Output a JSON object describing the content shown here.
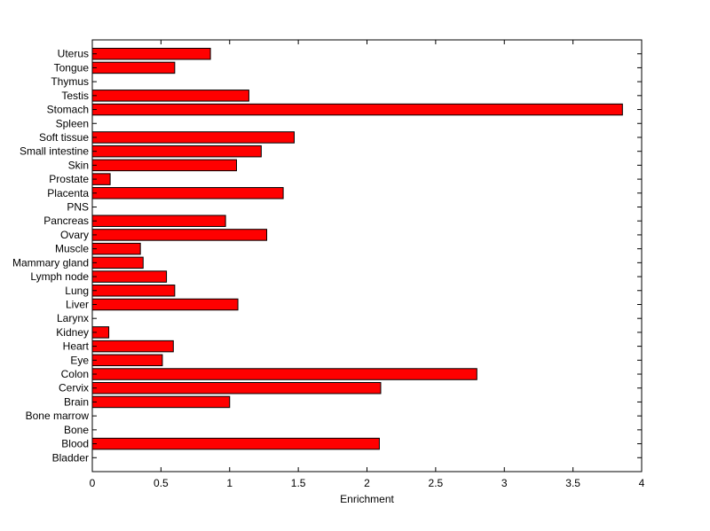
{
  "colors": {
    "bar_fill": "#ff0000",
    "bar_stroke": "#000000",
    "axis": "#000000",
    "background": "#ffffff"
  },
  "chart_data": {
    "type": "bar",
    "orientation": "horizontal",
    "categories": [
      "Bladder",
      "Blood",
      "Bone",
      "Bone marrow",
      "Brain",
      "Cervix",
      "Colon",
      "Eye",
      "Heart",
      "Kidney",
      "Larynx",
      "Liver",
      "Lung",
      "Lymph node",
      "Mammary gland",
      "Muscle",
      "Ovary",
      "Pancreas",
      "PNS",
      "Placenta",
      "Prostate",
      "Skin",
      "Small intestine",
      "Soft tissue",
      "Spleen",
      "Stomach",
      "Testis",
      "Thymus",
      "Tongue",
      "Uterus"
    ],
    "values": [
      0,
      2.09,
      0,
      0,
      1.0,
      2.1,
      2.8,
      0.51,
      0.59,
      0.12,
      0,
      1.06,
      0.6,
      0.54,
      0.37,
      0.35,
      1.27,
      0.97,
      0,
      1.39,
      0.13,
      1.05,
      1.23,
      1.47,
      0,
      3.86,
      1.14,
      0,
      0.6,
      0.86
    ],
    "xlabel": "Enrichment",
    "ylabel": "",
    "title": "",
    "xlim": [
      0,
      4
    ],
    "xticks": [
      "0",
      "0.5",
      "1",
      "1.5",
      "2",
      "2.5",
      "3",
      "3.5",
      "4"
    ],
    "grid": false,
    "legend": false
  }
}
